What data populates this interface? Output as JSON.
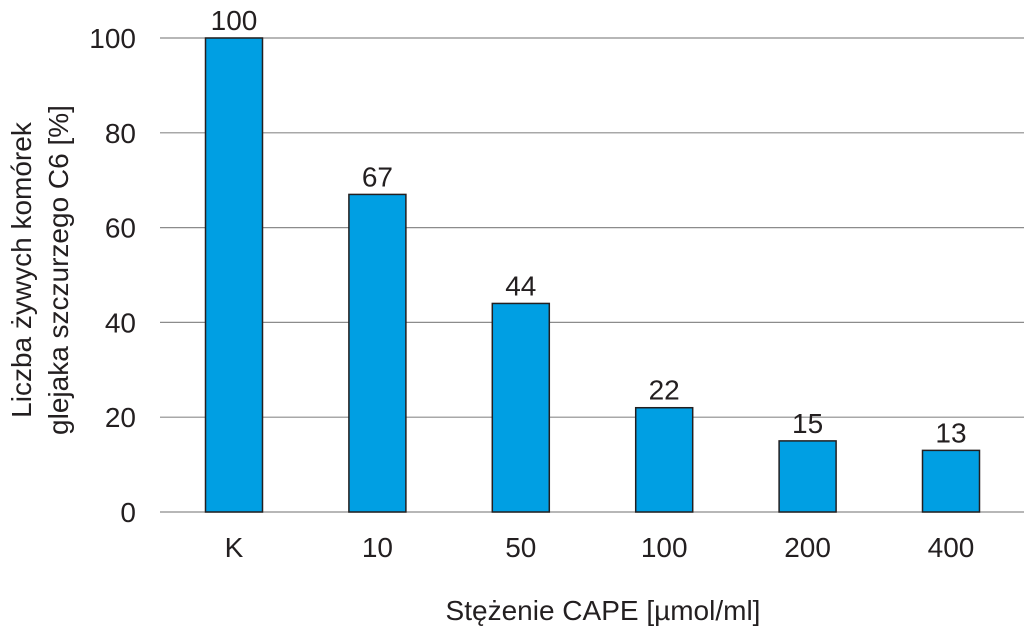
{
  "chart_data": {
    "type": "bar",
    "categories": [
      "K",
      "10",
      "50",
      "100",
      "200",
      "400"
    ],
    "values": [
      100,
      67,
      44,
      22,
      15,
      13
    ],
    "data_labels": [
      "100",
      "67",
      "44",
      "22",
      "15",
      "13"
    ],
    "title": "",
    "xlabel": "Stężenie CAPE [µmol/ml]",
    "ylabel_lines": [
      "Liczba żywych komórek",
      "glejaka szczurzego C6 [%]"
    ],
    "ylim": [
      0,
      100
    ],
    "yticks": [
      0,
      20,
      40,
      60,
      80,
      100
    ],
    "grid": true,
    "bar_color": "#009fe3",
    "bar_edge_color": "#231f20",
    "grid_color": "#8c8c8c"
  }
}
